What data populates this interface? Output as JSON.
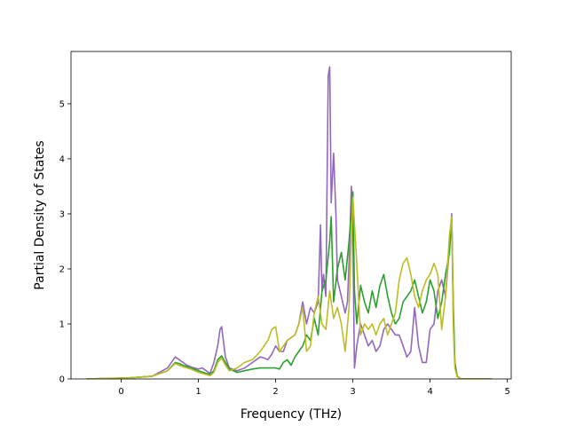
{
  "chart_data": {
    "type": "line",
    "title": "",
    "xlabel": "Frequency (THz)",
    "ylabel": "Partial Density of States",
    "xlim": [
      -0.65,
      5.05
    ],
    "ylim": [
      0,
      5.95
    ],
    "xticks": [
      0,
      1,
      2,
      3,
      4,
      5
    ],
    "yticks": [
      0,
      1,
      2,
      3,
      4,
      5
    ],
    "grid": false,
    "legend": "none",
    "series": [
      {
        "color": "#9467bd",
        "x": [
          -0.45,
          0.1,
          0.4,
          0.6,
          0.7,
          0.75,
          0.8,
          0.85,
          0.9,
          0.95,
          1.0,
          1.05,
          1.1,
          1.15,
          1.2,
          1.25,
          1.28,
          1.3,
          1.35,
          1.4,
          1.5,
          1.6,
          1.7,
          1.75,
          1.8,
          1.85,
          1.9,
          1.95,
          2.0,
          2.05,
          2.1,
          2.15,
          2.2,
          2.25,
          2.3,
          2.35,
          2.4,
          2.45,
          2.5,
          2.55,
          2.58,
          2.6,
          2.62,
          2.65,
          2.68,
          2.7,
          2.72,
          2.75,
          2.78,
          2.8,
          2.85,
          2.9,
          2.93,
          2.95,
          2.98,
          3.0,
          3.02,
          3.05,
          3.1,
          3.15,
          3.2,
          3.25,
          3.3,
          3.35,
          3.4,
          3.45,
          3.5,
          3.55,
          3.6,
          3.65,
          3.7,
          3.75,
          3.8,
          3.85,
          3.9,
          3.95,
          4.0,
          4.05,
          4.1,
          4.15,
          4.2,
          4.25,
          4.28,
          4.3,
          4.32,
          4.35,
          4.4,
          4.45,
          4.8
        ],
        "y": [
          0,
          0.02,
          0.05,
          0.2,
          0.4,
          0.35,
          0.3,
          0.25,
          0.22,
          0.2,
          0.18,
          0.2,
          0.15,
          0.1,
          0.3,
          0.6,
          0.9,
          0.95,
          0.4,
          0.2,
          0.15,
          0.2,
          0.3,
          0.35,
          0.4,
          0.38,
          0.35,
          0.45,
          0.6,
          0.5,
          0.5,
          0.7,
          0.75,
          0.8,
          1.0,
          1.4,
          1.0,
          1.3,
          1.2,
          1.4,
          2.8,
          1.6,
          1.9,
          1.5,
          5.5,
          5.67,
          3.2,
          4.1,
          3.0,
          1.8,
          1.5,
          1.2,
          1.4,
          2.1,
          3.5,
          2.6,
          0.2,
          0.6,
          1.0,
          0.8,
          0.6,
          0.7,
          0.5,
          0.6,
          0.9,
          1.0,
          0.9,
          0.8,
          0.8,
          0.6,
          0.4,
          0.5,
          1.3,
          0.6,
          0.3,
          0.3,
          0.9,
          1.0,
          1.6,
          1.8,
          1.5,
          2.4,
          3.0,
          1.2,
          0.3,
          0.05,
          0,
          0,
          0
        ]
      },
      {
        "color": "#2ca02c",
        "x": [
          -0.45,
          0.1,
          0.4,
          0.6,
          0.7,
          0.75,
          0.8,
          0.9,
          1.0,
          1.1,
          1.15,
          1.2,
          1.25,
          1.3,
          1.35,
          1.4,
          1.5,
          1.6,
          1.7,
          1.8,
          1.9,
          2.0,
          2.05,
          2.1,
          2.15,
          2.2,
          2.25,
          2.3,
          2.35,
          2.4,
          2.45,
          2.5,
          2.55,
          2.6,
          2.65,
          2.7,
          2.72,
          2.75,
          2.8,
          2.85,
          2.9,
          2.95,
          3.0,
          3.02,
          3.05,
          3.1,
          3.15,
          3.2,
          3.25,
          3.3,
          3.35,
          3.4,
          3.45,
          3.5,
          3.55,
          3.6,
          3.65,
          3.7,
          3.75,
          3.8,
          3.85,
          3.9,
          3.95,
          4.0,
          4.05,
          4.1,
          4.15,
          4.2,
          4.25,
          4.28,
          4.3,
          4.32,
          4.35,
          4.4,
          4.45,
          4.8
        ],
        "y": [
          0,
          0.02,
          0.05,
          0.15,
          0.3,
          0.28,
          0.25,
          0.2,
          0.15,
          0.1,
          0.08,
          0.15,
          0.35,
          0.42,
          0.3,
          0.18,
          0.12,
          0.15,
          0.18,
          0.2,
          0.2,
          0.2,
          0.18,
          0.3,
          0.35,
          0.25,
          0.4,
          0.5,
          0.6,
          0.8,
          0.7,
          1.1,
          0.8,
          1.6,
          1.8,
          2.5,
          2.95,
          1.4,
          2.0,
          2.3,
          1.8,
          2.5,
          3.4,
          1.6,
          1.0,
          1.7,
          1.4,
          1.2,
          1.6,
          1.3,
          1.7,
          1.9,
          1.5,
          1.2,
          1.0,
          1.1,
          1.4,
          1.5,
          1.6,
          1.8,
          1.5,
          1.2,
          1.4,
          1.8,
          1.6,
          1.1,
          1.4,
          1.9,
          2.3,
          2.9,
          1.4,
          0.3,
          0.05,
          0,
          0,
          0
        ]
      },
      {
        "color": "#bcbd22",
        "x": [
          -0.45,
          0.1,
          0.4,
          0.6,
          0.7,
          0.75,
          0.8,
          0.9,
          1.0,
          1.1,
          1.15,
          1.2,
          1.25,
          1.3,
          1.35,
          1.4,
          1.5,
          1.6,
          1.7,
          1.8,
          1.9,
          1.95,
          2.0,
          2.05,
          2.1,
          2.15,
          2.2,
          2.25,
          2.3,
          2.35,
          2.4,
          2.45,
          2.5,
          2.55,
          2.6,
          2.65,
          2.7,
          2.75,
          2.8,
          2.85,
          2.9,
          2.95,
          3.0,
          3.05,
          3.1,
          3.15,
          3.2,
          3.25,
          3.3,
          3.35,
          3.4,
          3.45,
          3.5,
          3.55,
          3.6,
          3.65,
          3.7,
          3.75,
          3.8,
          3.85,
          3.9,
          3.95,
          4.0,
          4.05,
          4.1,
          4.15,
          4.2,
          4.25,
          4.28,
          4.3,
          4.32,
          4.35,
          4.4,
          4.45,
          4.8
        ],
        "y": [
          0,
          0.02,
          0.05,
          0.15,
          0.28,
          0.25,
          0.22,
          0.18,
          0.12,
          0.08,
          0.06,
          0.12,
          0.3,
          0.38,
          0.25,
          0.15,
          0.2,
          0.3,
          0.35,
          0.5,
          0.7,
          0.9,
          0.95,
          0.5,
          0.6,
          0.7,
          0.75,
          0.8,
          1.0,
          1.3,
          0.5,
          0.6,
          1.2,
          1.5,
          1.0,
          0.9,
          1.6,
          1.1,
          1.3,
          1.0,
          0.5,
          1.3,
          3.3,
          2.1,
          0.8,
          1.0,
          0.9,
          1.0,
          0.8,
          1.0,
          1.1,
          0.8,
          1.0,
          1.2,
          1.8,
          2.1,
          2.2,
          1.9,
          1.5,
          1.3,
          1.6,
          1.8,
          1.9,
          2.1,
          1.9,
          0.9,
          1.5,
          2.6,
          2.95,
          1.0,
          0.2,
          0.04,
          0,
          0,
          0
        ]
      }
    ]
  }
}
